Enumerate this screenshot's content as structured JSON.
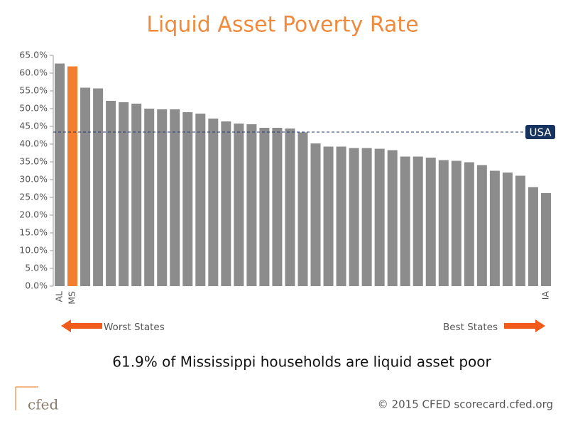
{
  "chart_data": {
    "type": "bar",
    "title": "Liquid Asset Poverty Rate",
    "categories": [
      "AL",
      "MS",
      null,
      null,
      null,
      null,
      null,
      null,
      null,
      null,
      null,
      null,
      null,
      null,
      null,
      null,
      null,
      null,
      null,
      null,
      null,
      null,
      null,
      null,
      null,
      null,
      null,
      null,
      null,
      null,
      null,
      null,
      null,
      null,
      null,
      null,
      null,
      null,
      "IA"
    ],
    "values": [
      62.7,
      61.9,
      55.9,
      55.7,
      52.2,
      51.8,
      51.4,
      50.0,
      49.8,
      49.8,
      49.0,
      48.6,
      47.2,
      46.4,
      45.8,
      45.6,
      44.6,
      44.6,
      44.4,
      43.3,
      40.2,
      39.3,
      39.3,
      38.9,
      38.9,
      38.7,
      38.3,
      36.5,
      36.5,
      36.2,
      35.5,
      35.3,
      34.9,
      34.1,
      32.5,
      32.0,
      31.1,
      27.9,
      26.2
    ],
    "colors": [
      "#8c8c8c",
      "#f47e2f",
      "#8c8c8c",
      "#8c8c8c",
      "#8c8c8c",
      "#8c8c8c",
      "#8c8c8c",
      "#8c8c8c",
      "#8c8c8c",
      "#8c8c8c",
      "#8c8c8c",
      "#8c8c8c",
      "#8c8c8c",
      "#8c8c8c",
      "#8c8c8c",
      "#8c8c8c",
      "#8c8c8c",
      "#8c8c8c",
      "#8c8c8c",
      "#8c8c8c",
      "#8c8c8c",
      "#8c8c8c",
      "#8c8c8c",
      "#8c8c8c",
      "#8c8c8c",
      "#8c8c8c",
      "#8c8c8c",
      "#8c8c8c",
      "#8c8c8c",
      "#8c8c8c",
      "#8c8c8c",
      "#8c8c8c",
      "#8c8c8c",
      "#8c8c8c",
      "#8c8c8c",
      "#8c8c8c",
      "#8c8c8c",
      "#8c8c8c",
      "#8c8c8c"
    ],
    "ylim": [
      0,
      65
    ],
    "yticks": [
      {
        "value": 0,
        "label": "0.0%"
      },
      {
        "value": 5,
        "label": "5.0%"
      },
      {
        "value": 10,
        "label": "10.0%"
      },
      {
        "value": 15,
        "label": "15.0%"
      },
      {
        "value": 20,
        "label": "20.0%"
      },
      {
        "value": 25,
        "label": "25.0%"
      },
      {
        "value": 30,
        "label": "30.0%"
      },
      {
        "value": 35,
        "label": "35.0%"
      },
      {
        "value": 40,
        "label": "40.0%"
      },
      {
        "value": 45,
        "label": "45.0%"
      },
      {
        "value": 50,
        "label": "50.0%"
      },
      {
        "value": 55,
        "label": "55.0%"
      },
      {
        "value": 60,
        "label": "60.0%"
      },
      {
        "value": 65,
        "label": "65.0%"
      }
    ],
    "reference_line": {
      "label": "USA",
      "value": 43.4
    },
    "annotations": {
      "left": "Worst States",
      "right": "Best States",
      "note": "61.9% of Mississippi households are liquid asset poor",
      "copyright": "© 2015 CFED scorecard.cfed.org",
      "logo": "cfed"
    }
  }
}
